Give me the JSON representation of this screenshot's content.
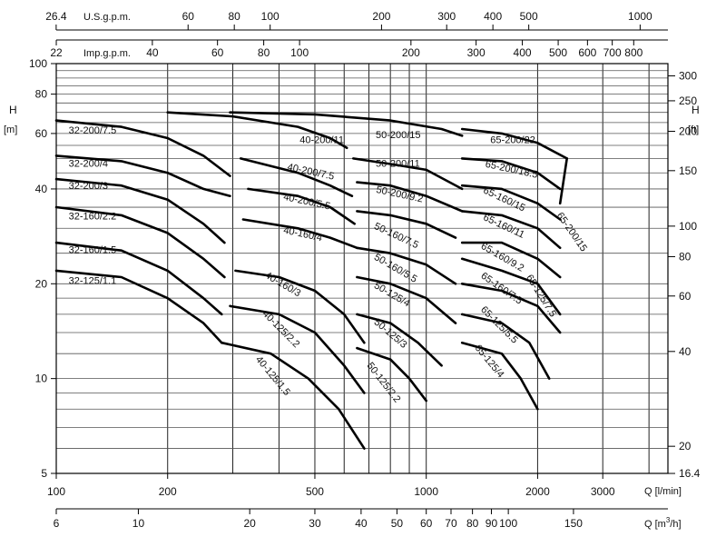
{
  "chart_data": {
    "type": "line",
    "x_scale": "log",
    "y_scale": "log",
    "grid": true,
    "axes": {
      "q_lmin": {
        "label": "Q [l/min]",
        "range": [
          100,
          4500
        ],
        "ticks": [
          "100",
          "200",
          "500",
          "1000",
          "2000",
          "3000"
        ]
      },
      "q_m3h": {
        "label": "Q [m³/h]",
        "unit_prefix": "Q [m",
        "unit_sup": "3",
        "unit_suffix": "/h]",
        "ticks": [
          "6",
          "10",
          "20",
          "30",
          "40",
          "50",
          "60",
          "70",
          "80",
          "90",
          "100",
          "150"
        ]
      },
      "us_gpm": {
        "label": "U.S.g.p.m.",
        "ticks": [
          "26.4",
          "60",
          "80",
          "100",
          "200",
          "300",
          "400",
          "500",
          "1000"
        ]
      },
      "imp_gpm": {
        "label": "Imp.g.p.m.",
        "ticks": [
          "22",
          "40",
          "60",
          "80",
          "100",
          "200",
          "300",
          "400",
          "500",
          "600",
          "700",
          "800"
        ]
      },
      "h_m": {
        "label": "H",
        "unit": "[m]",
        "range": [
          5,
          100
        ],
        "ticks": [
          "5",
          "10",
          "20",
          "40",
          "60",
          "80",
          "100"
        ]
      },
      "h_ft": {
        "label": "H",
        "unit": "[ft]",
        "ticks": [
          "16.4",
          "20",
          "40",
          "60",
          "80",
          "100",
          "150",
          "200",
          "250",
          "300"
        ]
      }
    },
    "series": [
      {
        "name": "32-200/7.5",
        "points": [
          [
            100,
            66
          ],
          [
            150,
            63
          ],
          [
            200,
            58
          ],
          [
            250,
            51
          ],
          [
            295,
            44
          ]
        ]
      },
      {
        "name": "32-200/4",
        "points": [
          [
            100,
            51
          ],
          [
            150,
            49
          ],
          [
            200,
            45
          ],
          [
            250,
            40
          ],
          [
            295,
            38
          ]
        ]
      },
      {
        "name": "32-200/3",
        "points": [
          [
            100,
            43
          ],
          [
            150,
            41
          ],
          [
            200,
            37
          ],
          [
            250,
            31
          ],
          [
            285,
            27
          ]
        ]
      },
      {
        "name": "32-160/2.2",
        "points": [
          [
            100,
            35
          ],
          [
            150,
            33
          ],
          [
            200,
            29
          ],
          [
            250,
            24
          ],
          [
            285,
            21
          ]
        ]
      },
      {
        "name": "32-160/1.5",
        "points": [
          [
            100,
            27
          ],
          [
            150,
            25.5
          ],
          [
            200,
            22
          ],
          [
            250,
            18
          ],
          [
            280,
            16
          ]
        ]
      },
      {
        "name": "32-125/1.1",
        "points": [
          [
            100,
            22
          ],
          [
            150,
            21
          ],
          [
            200,
            18
          ],
          [
            250,
            15
          ],
          [
            280,
            13
          ]
        ]
      },
      {
        "name": "40-200/11",
        "points": [
          [
            200,
            70
          ],
          [
            300,
            68
          ],
          [
            450,
            63
          ],
          [
            550,
            58
          ],
          [
            610,
            54
          ]
        ]
      },
      {
        "name": "40-200/7.5",
        "points": [
          [
            315,
            50
          ],
          [
            450,
            45
          ],
          [
            550,
            41
          ],
          [
            630,
            38
          ]
        ]
      },
      {
        "name": "40-200/5.5",
        "points": [
          [
            330,
            40
          ],
          [
            450,
            38
          ],
          [
            550,
            35
          ],
          [
            640,
            31
          ]
        ]
      },
      {
        "name": "40-160/4",
        "points": [
          [
            320,
            32
          ],
          [
            450,
            30
          ],
          [
            550,
            28
          ],
          [
            650,
            26
          ]
        ]
      },
      {
        "name": "40-160/3",
        "points": [
          [
            305,
            22
          ],
          [
            400,
            21
          ],
          [
            500,
            19
          ],
          [
            600,
            16
          ],
          [
            680,
            13
          ]
        ]
      },
      {
        "name": "40-125/2.2",
        "points": [
          [
            295,
            17
          ],
          [
            400,
            16
          ],
          [
            500,
            14
          ],
          [
            600,
            11
          ],
          [
            680,
            9
          ]
        ]
      },
      {
        "name": "40-125/1.5",
        "points": [
          [
            280,
            13
          ],
          [
            380,
            12
          ],
          [
            480,
            10
          ],
          [
            580,
            8
          ],
          [
            680,
            6
          ]
        ]
      },
      {
        "name": "50-200/15",
        "points": [
          [
            295,
            70
          ],
          [
            500,
            69
          ],
          [
            800,
            66
          ],
          [
            1100,
            62
          ],
          [
            1250,
            59
          ]
        ]
      },
      {
        "name": "50-200/11",
        "points": [
          [
            635,
            50
          ],
          [
            800,
            48
          ],
          [
            1000,
            46
          ],
          [
            1250,
            40
          ]
        ]
      },
      {
        "name": "50-200/9.2",
        "points": [
          [
            650,
            42
          ],
          [
            800,
            41
          ],
          [
            1000,
            38
          ],
          [
            1250,
            34
          ]
        ]
      },
      {
        "name": "50-160/7.5",
        "points": [
          [
            650,
            34
          ],
          [
            800,
            33
          ],
          [
            1000,
            31
          ],
          [
            1200,
            28
          ]
        ]
      },
      {
        "name": "50-160/5.5",
        "points": [
          [
            650,
            26
          ],
          [
            800,
            25
          ],
          [
            1000,
            23
          ],
          [
            1200,
            20
          ]
        ]
      },
      {
        "name": "50-125/4",
        "points": [
          [
            650,
            21
          ],
          [
            800,
            20
          ],
          [
            1000,
            18
          ],
          [
            1200,
            15
          ]
        ]
      },
      {
        "name": "50-125/3",
        "points": [
          [
            650,
            16
          ],
          [
            800,
            15
          ],
          [
            950,
            13
          ],
          [
            1100,
            11
          ]
        ]
      },
      {
        "name": "50-125/2.2",
        "points": [
          [
            650,
            12.5
          ],
          [
            800,
            11.5
          ],
          [
            900,
            10
          ],
          [
            1000,
            8.5
          ]
        ]
      },
      {
        "name": "65-200/22",
        "points": [
          [
            1250,
            62
          ],
          [
            1600,
            60
          ],
          [
            2000,
            56
          ],
          [
            2400,
            50
          ]
        ]
      },
      {
        "name": "65-200/18.5",
        "points": [
          [
            1250,
            50
          ],
          [
            1600,
            49
          ],
          [
            2000,
            45
          ],
          [
            2300,
            40
          ]
        ]
      },
      {
        "name": "65-160/15",
        "points": [
          [
            1250,
            41
          ],
          [
            1600,
            40
          ],
          [
            2000,
            36
          ],
          [
            2300,
            32
          ]
        ]
      },
      {
        "name": "65-160/11",
        "points": [
          [
            1250,
            34
          ],
          [
            1600,
            33
          ],
          [
            2000,
            30
          ],
          [
            2300,
            26
          ]
        ]
      },
      {
        "name": "65-160/9.2",
        "points": [
          [
            1250,
            27
          ],
          [
            1600,
            27
          ],
          [
            2000,
            24
          ],
          [
            2300,
            21
          ]
        ]
      },
      {
        "name": "65-160/7.5",
        "points": [
          [
            1250,
            24
          ],
          [
            1600,
            22
          ],
          [
            2000,
            20
          ],
          [
            2300,
            16
          ]
        ]
      },
      {
        "name": "65-125/7.5",
        "points": [
          [
            1250,
            20
          ],
          [
            1600,
            19
          ],
          [
            2000,
            17
          ],
          [
            2300,
            14
          ]
        ]
      },
      {
        "name": "65-125/5.5",
        "points": [
          [
            1250,
            16
          ],
          [
            1600,
            15
          ],
          [
            1900,
            13
          ],
          [
            2150,
            10
          ]
        ]
      },
      {
        "name": "65-125/4",
        "points": [
          [
            1250,
            13
          ],
          [
            1600,
            12
          ],
          [
            1800,
            10
          ],
          [
            2000,
            8
          ]
        ]
      },
      {
        "name": "65-200/15",
        "points": [
          [
            2400,
            50
          ],
          [
            2300,
            36
          ]
        ]
      }
    ],
    "series_labels": [
      {
        "text": "32-200/7.5",
        "q": 108,
        "h": 60,
        "rot": 0
      },
      {
        "text": "32-200/4",
        "q": 108,
        "h": 47,
        "rot": 0
      },
      {
        "text": "32-200/3",
        "q": 108,
        "h": 40,
        "rot": 0
      },
      {
        "text": "32-160/2.2",
        "q": 108,
        "h": 32,
        "rot": 0
      },
      {
        "text": "32-160/1.5",
        "q": 108,
        "h": 25,
        "rot": 0
      },
      {
        "text": "32-125/1.1",
        "q": 108,
        "h": 20,
        "rot": 0
      },
      {
        "text": "40-200/11",
        "q": 455,
        "h": 56,
        "rot": 0
      },
      {
        "text": "40-200/7.5",
        "q": 420,
        "h": 46,
        "rot": 12
      },
      {
        "text": "40-200/5.5",
        "q": 410,
        "h": 37,
        "rot": 12
      },
      {
        "text": "40-160/4",
        "q": 410,
        "h": 29,
        "rot": 12
      },
      {
        "text": "40-160/3",
        "q": 365,
        "h": 21,
        "rot": 30
      },
      {
        "text": "40-125/2.2",
        "q": 360,
        "h": 16,
        "rot": 45
      },
      {
        "text": "40-125/1.5",
        "q": 345,
        "h": 11.5,
        "rot": 50
      },
      {
        "text": "50-200/15",
        "q": 730,
        "h": 58,
        "rot": 0
      },
      {
        "text": "50-200/11",
        "q": 730,
        "h": 47,
        "rot": 0
      },
      {
        "text": "50-200/9.2",
        "q": 730,
        "h": 39,
        "rot": 12
      },
      {
        "text": "50-160/7.5",
        "q": 720,
        "h": 30,
        "rot": 25
      },
      {
        "text": "50-160/5.5",
        "q": 720,
        "h": 24,
        "rot": 30
      },
      {
        "text": "50-125/4",
        "q": 720,
        "h": 19.5,
        "rot": 30
      },
      {
        "text": "50-125/3",
        "q": 720,
        "h": 15,
        "rot": 40
      },
      {
        "text": "50-125/2.2",
        "q": 690,
        "h": 11,
        "rot": 52
      },
      {
        "text": "65-200/22",
        "q": 1490,
        "h": 56,
        "rot": 0
      },
      {
        "text": "65-200/18.5",
        "q": 1440,
        "h": 47,
        "rot": 12
      },
      {
        "text": "65-160/15",
        "q": 1420,
        "h": 39,
        "rot": 25
      },
      {
        "text": "65-160/11",
        "q": 1420,
        "h": 32,
        "rot": 25
      },
      {
        "text": "65-160/9.2",
        "q": 1400,
        "h": 26,
        "rot": 30
      },
      {
        "text": "65-160/7.5",
        "q": 1400,
        "h": 21,
        "rot": 35
      },
      {
        "text": "65-125/7.5",
        "q": 1860,
        "h": 21,
        "rot": 58
      },
      {
        "text": "65-125/5.5",
        "q": 1400,
        "h": 16.5,
        "rot": 45
      },
      {
        "text": "65-125/4",
        "q": 1350,
        "h": 12.5,
        "rot": 50
      },
      {
        "text": "65-200/15",
        "q": 2250,
        "h": 33,
        "rot": 55
      }
    ]
  }
}
